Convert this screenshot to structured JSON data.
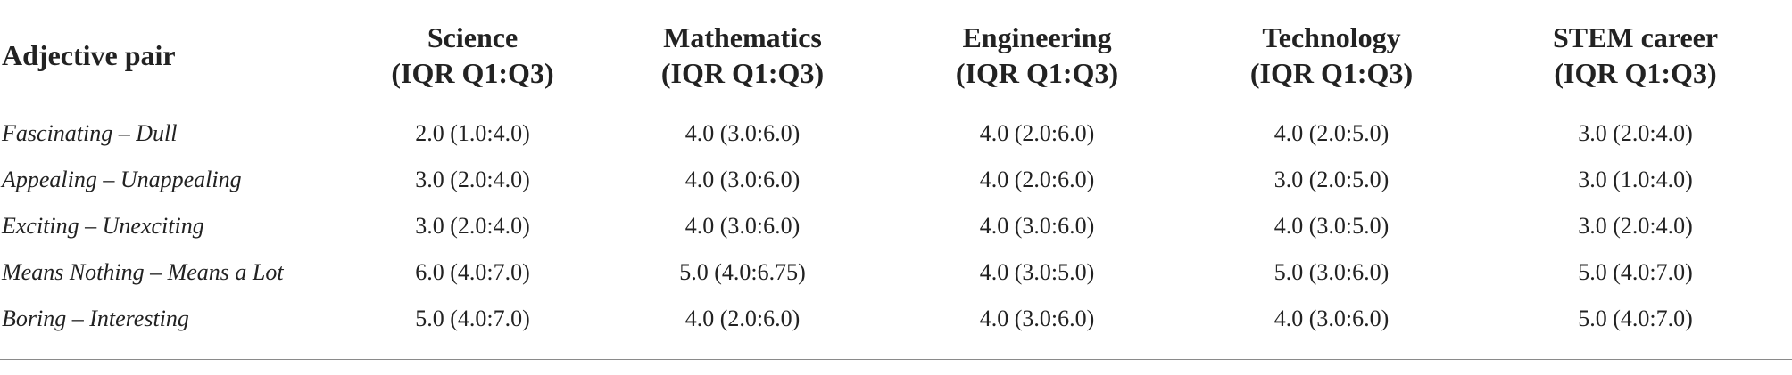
{
  "table": {
    "headers": [
      {
        "line1": "Adjective pair",
        "line2": ""
      },
      {
        "line1": "Science",
        "line2": "(IQR Q1:Q3)"
      },
      {
        "line1": "Mathematics",
        "line2": "(IQR Q1:Q3)"
      },
      {
        "line1": "Engineering",
        "line2": "(IQR Q1:Q3)"
      },
      {
        "line1": "Technology",
        "line2": "(IQR Q1:Q3)"
      },
      {
        "line1": "STEM career",
        "line2": "(IQR Q1:Q3)"
      }
    ],
    "rows": [
      {
        "label": "Fascinating – Dull",
        "cells": [
          "2.0 (1.0:4.0)",
          "4.0 (3.0:6.0)",
          "4.0 (2.0:6.0)",
          "4.0 (2.0:5.0)",
          "3.0 (2.0:4.0)"
        ]
      },
      {
        "label": "Appealing – Unappealing",
        "cells": [
          "3.0 (2.0:4.0)",
          "4.0 (3.0:6.0)",
          "4.0 (2.0:6.0)",
          "3.0 (2.0:5.0)",
          "3.0 (1.0:4.0)"
        ]
      },
      {
        "label": "Exciting – Unexciting",
        "cells": [
          "3.0 (2.0:4.0)",
          "4.0 (3.0:6.0)",
          "4.0 (3.0:6.0)",
          "4.0 (3.0:5.0)",
          "3.0 (2.0:4.0)"
        ]
      },
      {
        "label": "Means Nothing – Means a Lot",
        "cells": [
          "6.0 (4.0:7.0)",
          "5.0 (4.0:6.75)",
          "4.0 (3.0:5.0)",
          "5.0 (3.0:6.0)",
          "5.0 (4.0:7.0)"
        ]
      },
      {
        "label": "Boring – Interesting",
        "cells": [
          "5.0 (4.0:7.0)",
          "4.0 (2.0:6.0)",
          "4.0 (3.0:6.0)",
          "4.0 (3.0:6.0)",
          "5.0 (4.0:7.0)"
        ]
      }
    ]
  }
}
